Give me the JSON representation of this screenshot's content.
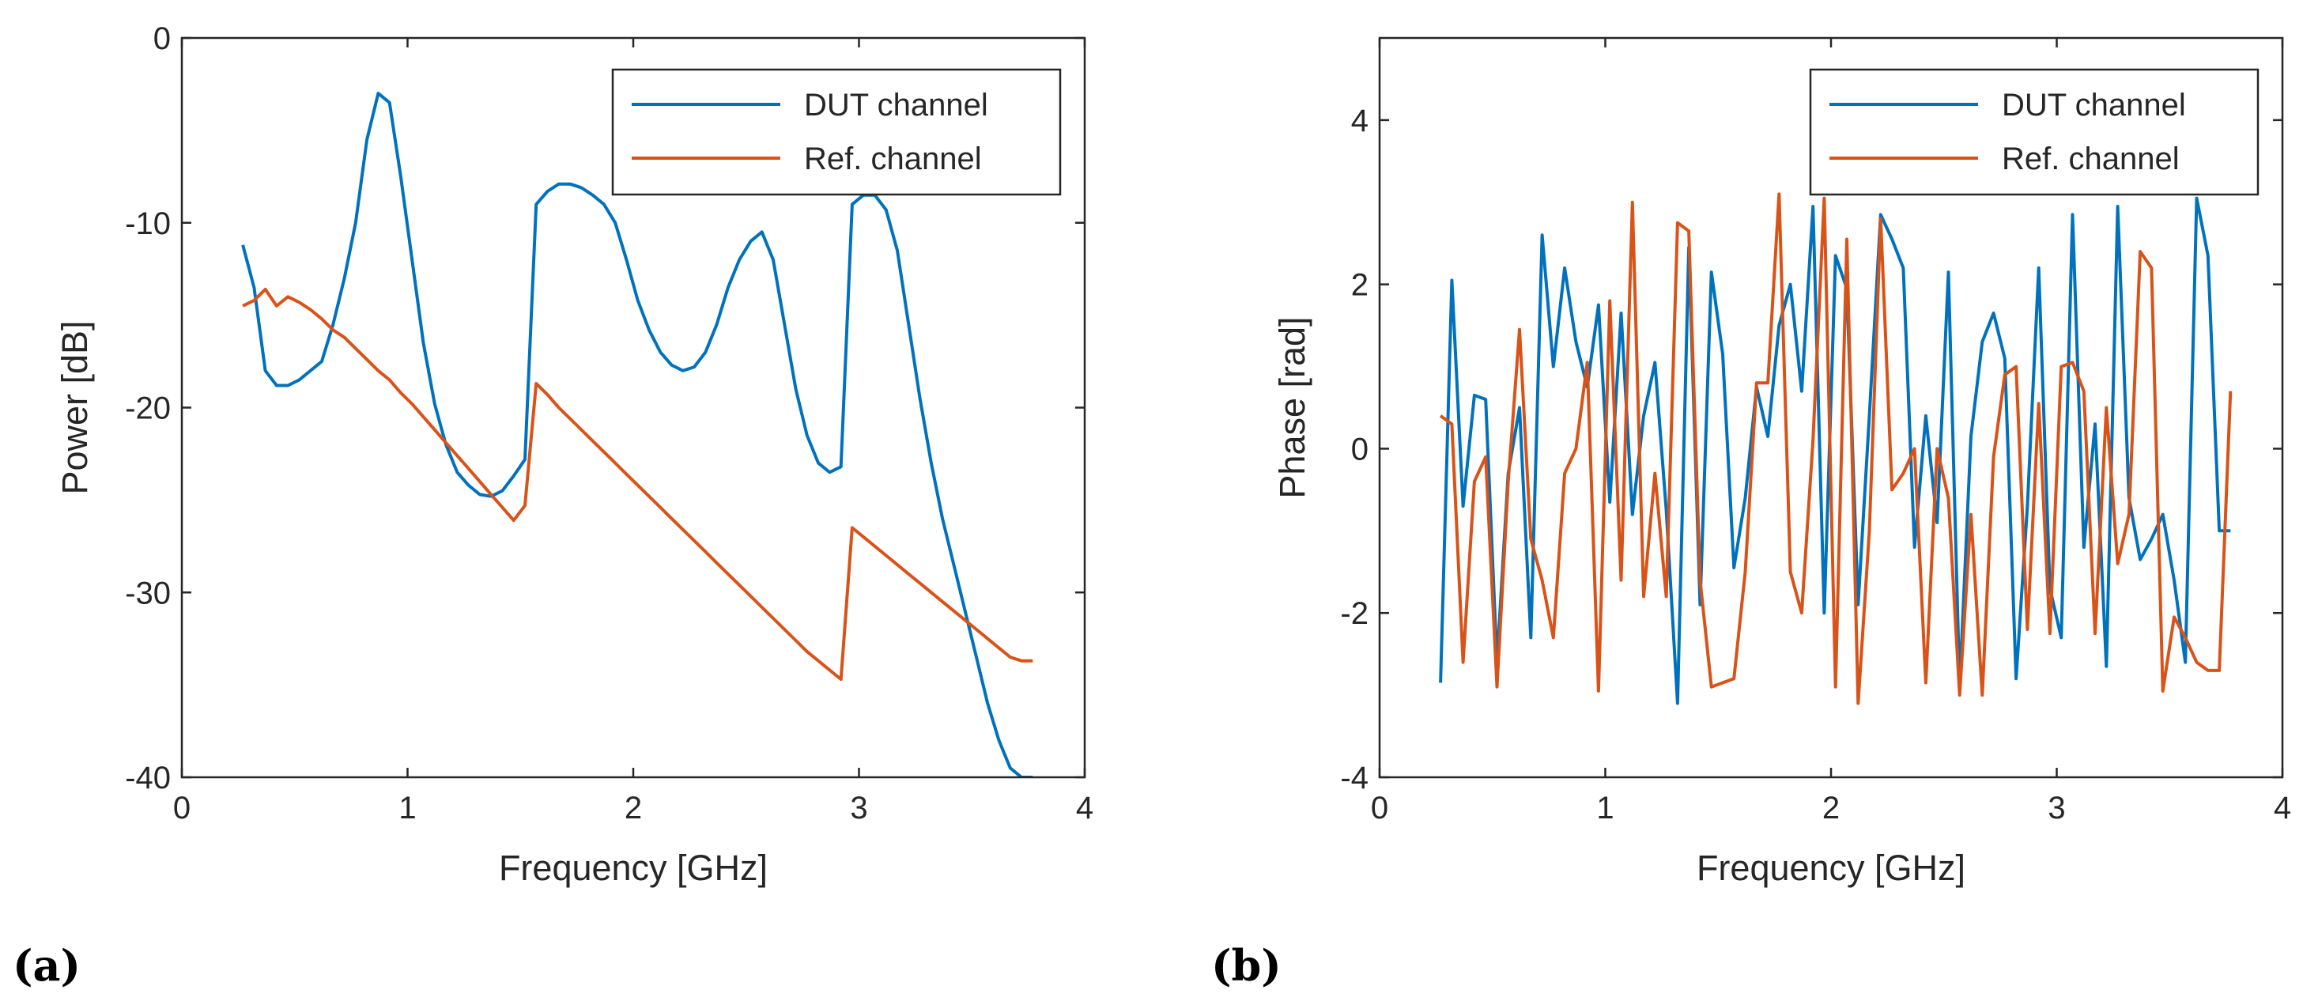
{
  "colors": {
    "dut": "#0072BD",
    "ref": "#D95319",
    "axis": "#262626",
    "background": "#ffffff"
  },
  "panels": [
    {
      "tag": "(a)"
    },
    {
      "tag": "(b)"
    }
  ],
  "chart_data": [
    {
      "type": "line",
      "title": "",
      "xlabel": "Frequency [GHz]",
      "ylabel": "Power [dB]",
      "xlim": [
        0,
        4
      ],
      "ylim": [
        -40,
        0
      ],
      "xticks": [
        0,
        1,
        2,
        3,
        4
      ],
      "yticks": [
        -40,
        -30,
        -20,
        -10,
        0
      ],
      "xtick_labels": [
        "0",
        "1",
        "2",
        "3",
        "4"
      ],
      "ytick_labels": [
        "-40",
        "-30",
        "-20",
        "-10",
        "0"
      ],
      "legend_position": "top-right",
      "grid": false,
      "series": [
        {
          "name": "DUT channel",
          "color": "#0072BD",
          "x": [
            0.27,
            0.32,
            0.37,
            0.42,
            0.47,
            0.52,
            0.57,
            0.62,
            0.67,
            0.72,
            0.77,
            0.82,
            0.87,
            0.92,
            0.97,
            1.02,
            1.07,
            1.12,
            1.17,
            1.22,
            1.27,
            1.32,
            1.37,
            1.42,
            1.47,
            1.52,
            1.57,
            1.62,
            1.67,
            1.72,
            1.77,
            1.82,
            1.87,
            1.92,
            1.97,
            2.02,
            2.07,
            2.12,
            2.17,
            2.22,
            2.27,
            2.32,
            2.37,
            2.42,
            2.47,
            2.52,
            2.57,
            2.62,
            2.67,
            2.72,
            2.77,
            2.82,
            2.87,
            2.92,
            2.97,
            3.02,
            3.07,
            3.12,
            3.17,
            3.22,
            3.27,
            3.32,
            3.37,
            3.42,
            3.47,
            3.52,
            3.57,
            3.62,
            3.67,
            3.72,
            3.77
          ],
          "y": [
            -11.2,
            -13.5,
            -18.0,
            -18.8,
            -18.8,
            -18.5,
            -18.0,
            -17.5,
            -15.5,
            -13.0,
            -10.0,
            -5.5,
            -3.0,
            -3.5,
            -7.5,
            -12.0,
            -16.5,
            -19.8,
            -22.0,
            -23.5,
            -24.2,
            -24.7,
            -24.8,
            -24.5,
            -23.7,
            -22.8,
            -9.0,
            -8.3,
            -7.9,
            -7.9,
            -8.1,
            -8.5,
            -9.0,
            -10.0,
            -12.0,
            -14.2,
            -15.8,
            -17.0,
            -17.7,
            -18.0,
            -17.8,
            -17.0,
            -15.5,
            -13.5,
            -12.0,
            -11.0,
            -10.5,
            -12.0,
            -15.5,
            -19.0,
            -21.5,
            -23.0,
            -23.5,
            -23.2,
            -9.0,
            -8.5,
            -8.5,
            -9.3,
            -11.5,
            -15.5,
            -19.5,
            -23.0,
            -26.0,
            -28.5,
            -31.0,
            -33.5,
            -36.0,
            -38.0,
            -39.5,
            -40.0,
            -40.0
          ]
        },
        {
          "name": "Ref. channel",
          "color": "#D95319",
          "x": [
            0.27,
            0.32,
            0.37,
            0.42,
            0.47,
            0.52,
            0.57,
            0.62,
            0.67,
            0.72,
            0.77,
            0.82,
            0.87,
            0.92,
            0.97,
            1.02,
            1.07,
            1.12,
            1.17,
            1.22,
            1.27,
            1.32,
            1.37,
            1.42,
            1.47,
            1.52,
            1.57,
            1.62,
            1.67,
            1.72,
            1.77,
            1.82,
            1.87,
            1.92,
            1.97,
            2.02,
            2.07,
            2.12,
            2.17,
            2.22,
            2.27,
            2.32,
            2.37,
            2.42,
            2.47,
            2.52,
            2.57,
            2.62,
            2.67,
            2.72,
            2.77,
            2.82,
            2.87,
            2.92,
            2.97,
            3.02,
            3.07,
            3.12,
            3.17,
            3.22,
            3.27,
            3.32,
            3.37,
            3.42,
            3.47,
            3.52,
            3.57,
            3.62,
            3.67,
            3.72,
            3.77
          ],
          "y": [
            -14.5,
            -14.2,
            -13.6,
            -14.5,
            -14.0,
            -14.3,
            -14.7,
            -15.2,
            -15.8,
            -16.2,
            -16.8,
            -17.4,
            -18.0,
            -18.5,
            -19.2,
            -19.8,
            -20.5,
            -21.2,
            -21.9,
            -22.6,
            -23.3,
            -24.0,
            -24.7,
            -25.4,
            -26.1,
            -25.3,
            -18.7,
            -19.3,
            -20.0,
            -20.6,
            -21.2,
            -21.8,
            -22.4,
            -23.0,
            -23.6,
            -24.2,
            -24.8,
            -25.4,
            -26.0,
            -26.6,
            -27.2,
            -27.8,
            -28.4,
            -29.0,
            -29.6,
            -30.2,
            -30.8,
            -31.4,
            -32.0,
            -32.6,
            -33.2,
            -33.7,
            -34.2,
            -34.7,
            -26.5,
            -27.0,
            -27.5,
            -28.0,
            -28.5,
            -29.0,
            -29.5,
            -30.0,
            -30.5,
            -31.0,
            -31.5,
            -32.0,
            -32.5,
            -33.0,
            -33.5,
            -33.7,
            -33.7
          ]
        }
      ]
    },
    {
      "type": "line",
      "title": "",
      "xlabel": "Frequency [GHz]",
      "ylabel": "Phase [rad]",
      "xlim": [
        0,
        4
      ],
      "ylim": [
        -4,
        5
      ],
      "xticks": [
        0,
        1,
        2,
        3,
        4
      ],
      "yticks": [
        -4,
        -2,
        0,
        2,
        4
      ],
      "xtick_labels": [
        "0",
        "1",
        "2",
        "3",
        "4"
      ],
      "ytick_labels": [
        "-4",
        "-2",
        "0",
        "2",
        "4"
      ],
      "legend_position": "top-right",
      "grid": false,
      "series": [
        {
          "name": "DUT channel",
          "color": "#0072BD",
          "x": [
            0.27,
            0.32,
            0.37,
            0.42,
            0.47,
            0.52,
            0.57,
            0.62,
            0.67,
            0.72,
            0.77,
            0.82,
            0.87,
            0.92,
            0.97,
            1.02,
            1.07,
            1.12,
            1.17,
            1.22,
            1.27,
            1.32,
            1.37,
            1.42,
            1.47,
            1.52,
            1.57,
            1.62,
            1.67,
            1.72,
            1.77,
            1.82,
            1.87,
            1.92,
            1.97,
            2.02,
            2.07,
            2.12,
            2.17,
            2.22,
            2.27,
            2.32,
            2.37,
            2.42,
            2.47,
            2.52,
            2.57,
            2.62,
            2.67,
            2.72,
            2.77,
            2.82,
            2.87,
            2.92,
            2.97,
            3.02,
            3.07,
            3.12,
            3.17,
            3.22,
            3.27,
            3.32,
            3.37,
            3.42,
            3.47,
            3.52,
            3.57,
            3.62,
            3.67,
            3.72,
            3.77
          ],
          "y": [
            -2.85,
            2.05,
            -0.7,
            0.65,
            0.6,
            -2.6,
            -0.3,
            0.5,
            -2.3,
            2.6,
            1.0,
            2.2,
            1.3,
            0.75,
            1.75,
            -0.65,
            1.65,
            -0.8,
            0.4,
            1.05,
            -0.75,
            -3.1,
            2.45,
            -1.9,
            2.15,
            1.15,
            -1.45,
            -0.6,
            0.75,
            0.15,
            1.5,
            2.0,
            0.7,
            2.95,
            -2.0,
            2.35,
            1.95,
            -1.9,
            0.4,
            2.85,
            2.55,
            2.2,
            -1.2,
            0.4,
            -0.9,
            2.15,
            -2.9,
            0.15,
            1.3,
            1.65,
            1.1,
            -2.8,
            -0.7,
            2.2,
            -1.7,
            -2.3,
            2.85,
            -1.2,
            0.3,
            -2.65,
            2.95,
            -0.6,
            -1.35,
            -1.1,
            -0.8,
            -1.6,
            -2.6,
            3.05,
            2.35,
            -1.0,
            -1.0
          ]
        },
        {
          "name": "Ref. channel",
          "color": "#D95319",
          "x": [
            0.27,
            0.32,
            0.37,
            0.42,
            0.47,
            0.52,
            0.57,
            0.62,
            0.67,
            0.72,
            0.77,
            0.82,
            0.87,
            0.92,
            0.97,
            1.02,
            1.07,
            1.12,
            1.17,
            1.22,
            1.27,
            1.32,
            1.37,
            1.42,
            1.47,
            1.52,
            1.57,
            1.62,
            1.67,
            1.72,
            1.77,
            1.82,
            1.87,
            1.92,
            1.97,
            2.02,
            2.07,
            2.12,
            2.17,
            2.22,
            2.27,
            2.32,
            2.37,
            2.42,
            2.47,
            2.52,
            2.57,
            2.62,
            2.67,
            2.72,
            2.77,
            2.82,
            2.87,
            2.92,
            2.97,
            3.02,
            3.07,
            3.12,
            3.17,
            3.22,
            3.27,
            3.32,
            3.37,
            3.42,
            3.47,
            3.52,
            3.57,
            3.62,
            3.67,
            3.72,
            3.77
          ],
          "y": [
            0.4,
            0.3,
            -2.6,
            -0.4,
            -0.1,
            -2.9,
            -0.4,
            1.45,
            -1.1,
            -1.6,
            -2.3,
            -0.3,
            0.0,
            1.05,
            -2.95,
            1.8,
            -1.6,
            3.0,
            -1.8,
            -0.3,
            -1.8,
            2.75,
            2.65,
            -1.6,
            -2.9,
            -2.85,
            -2.8,
            -1.5,
            0.8,
            0.8,
            3.1,
            -1.5,
            -2.0,
            0.1,
            3.05,
            -2.9,
            2.55,
            -3.1,
            -1.0,
            2.8,
            -0.5,
            -0.3,
            0.0,
            -2.85,
            0.0,
            -0.6,
            -3.0,
            -0.8,
            -3.0,
            -0.1,
            0.9,
            1.0,
            -2.2,
            0.55,
            -2.25,
            1.0,
            1.05,
            0.7,
            -2.25,
            0.5,
            -1.4,
            -0.8,
            2.4,
            2.2,
            -2.95,
            -2.05,
            -2.3,
            -2.6,
            -2.7,
            -2.7,
            0.7
          ]
        }
      ]
    }
  ]
}
